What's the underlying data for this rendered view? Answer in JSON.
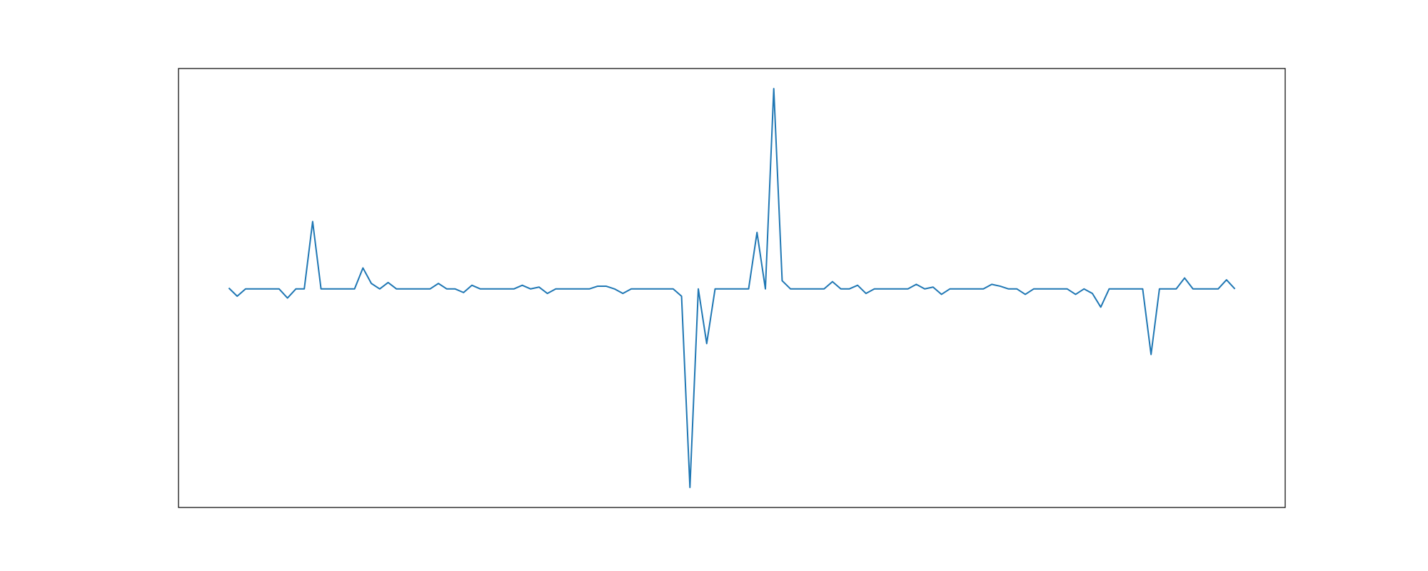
{
  "chart_data": {
    "type": "line",
    "series": [
      {
        "color": "#1f77b4",
        "values": [
          0.1,
          -0.8,
          0,
          0,
          0,
          0,
          0,
          -1.0,
          0,
          0,
          7.4,
          0,
          0,
          0,
          0,
          0,
          2.3,
          0.6,
          0,
          0.7,
          0,
          0,
          0,
          0,
          0,
          0.6,
          0,
          0,
          -0.4,
          0.4,
          0,
          0,
          0,
          0,
          0,
          0.4,
          0,
          0.2,
          -0.5,
          0,
          0,
          0,
          0,
          0,
          0.3,
          0.3,
          0,
          -0.5,
          0,
          0,
          0,
          0,
          0,
          0,
          -0.8,
          -21.8,
          0,
          -6.0,
          0,
          0,
          0,
          0,
          0,
          6.2,
          0,
          22.0,
          0.9,
          0,
          0,
          0,
          0,
          0,
          0.8,
          0,
          0,
          0.4,
          -0.5,
          0,
          0,
          0,
          0,
          0,
          0.5,
          0,
          0.2,
          -0.6,
          0,
          0,
          0,
          0,
          0,
          0.5,
          0.3,
          0,
          0,
          -0.6,
          0,
          0,
          0,
          0,
          0,
          -0.6,
          0,
          -0.5,
          -2.0,
          0,
          0,
          0,
          0,
          0,
          -7.2,
          0,
          0,
          0,
          1.2,
          0,
          0,
          0,
          0,
          1.0,
          0
        ]
      }
    ],
    "xlim": [
      -6,
      126
    ],
    "ylim": [
      -24.0,
      24.2
    ]
  }
}
